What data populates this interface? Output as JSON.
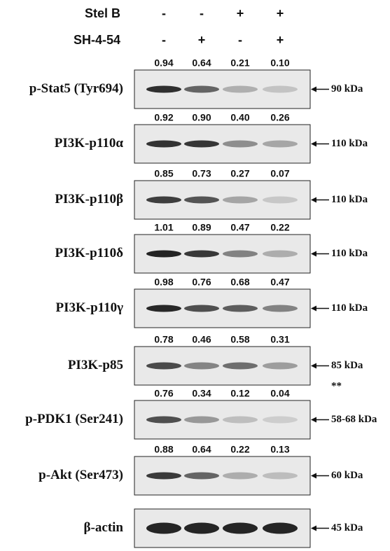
{
  "treatments": [
    {
      "label": "Stel B",
      "signs": [
        "-",
        "-",
        "+",
        "+"
      ]
    },
    {
      "label": "SH-4-54",
      "signs": [
        "-",
        "+",
        "-",
        "+"
      ]
    }
  ],
  "panels": [
    {
      "label": "p-Stat5 (Tyr694)",
      "values": [
        "0.94",
        "0.64",
        "0.21",
        "0.10"
      ],
      "size": "90 kDa"
    },
    {
      "label": "PI3K-p110α",
      "values": [
        "0.92",
        "0.90",
        "0.40",
        "0.26"
      ],
      "size": "110 kDa"
    },
    {
      "label": "PI3K-p110β",
      "values": [
        "0.85",
        "0.73",
        "0.27",
        "0.07"
      ],
      "size": "110 kDa"
    },
    {
      "label": "PI3K-p110δ",
      "values": [
        "1.01",
        "0.89",
        "0.47",
        "0.22"
      ],
      "size": "110 kDa"
    },
    {
      "label": "PI3K-p110γ",
      "values": [
        "0.98",
        "0.76",
        "0.68",
        "0.47"
      ],
      "size": "110 kDa"
    },
    {
      "label": "PI3K-p85",
      "values": [
        "0.78",
        "0.46",
        "0.58",
        "0.31"
      ],
      "size": "85 kDa",
      "note": "**"
    },
    {
      "label": "p-PDK1 (Ser241)",
      "values": [
        "0.76",
        "0.34",
        "0.12",
        "0.04"
      ],
      "size": "58-68 kDa"
    },
    {
      "label": "p-Akt (Ser473)",
      "values": [
        "0.88",
        "0.64",
        "0.22",
        "0.13"
      ],
      "size": "60 kDa"
    },
    {
      "label": "β-actin",
      "size": "45 kDa"
    }
  ]
}
